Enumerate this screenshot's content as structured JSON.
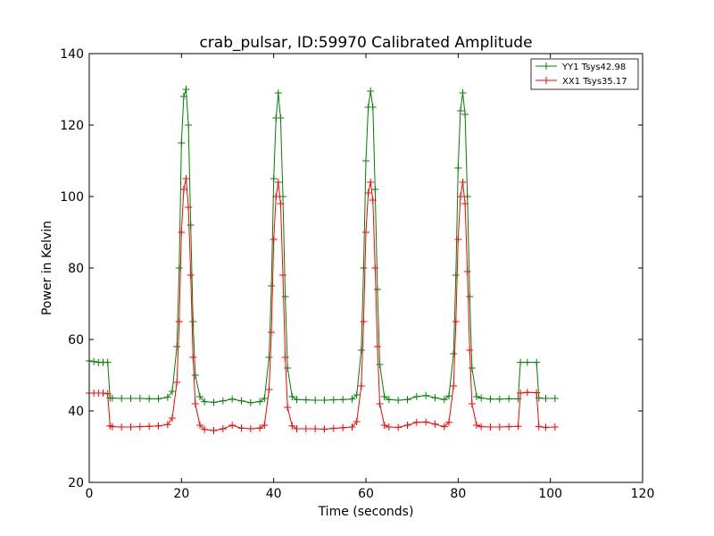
{
  "chart_data": {
    "type": "line",
    "title": "crab_pulsar, ID:59970 Calibrated Amplitude",
    "xlabel": "Time (seconds)",
    "ylabel": "Power in Kelvin",
    "xlim": [
      0,
      120
    ],
    "ylim": [
      20,
      140
    ],
    "xticks": [
      0,
      20,
      40,
      60,
      80,
      100,
      120
    ],
    "yticks": [
      20,
      40,
      60,
      80,
      100,
      120,
      140
    ],
    "grid": false,
    "legend_position": "top-right",
    "marker": "+",
    "series": [
      {
        "name": "YY1 Tsys42.98",
        "color": "#008000",
        "x": [
          0,
          1,
          2,
          3,
          4,
          4.5,
          5,
          7,
          9,
          11,
          13,
          15,
          17,
          18,
          19,
          19.5,
          20,
          20.5,
          21,
          21.5,
          22,
          22.5,
          23,
          24,
          25,
          27,
          29,
          31,
          33,
          35,
          37,
          38,
          39,
          39.5,
          40,
          40.5,
          41,
          41.5,
          42,
          42.5,
          43,
          44,
          45,
          47,
          49,
          51,
          53,
          55,
          57,
          58,
          59,
          59.5,
          60,
          60.5,
          61,
          61.5,
          62,
          62.5,
          63,
          64,
          65,
          67,
          69,
          71,
          73,
          75,
          77,
          78,
          79,
          79.5,
          80,
          80.5,
          81,
          81.5,
          82,
          82.5,
          83,
          84,
          85,
          87,
          89,
          91,
          93,
          93.5,
          95,
          97,
          97.5,
          99,
          101
        ],
        "y": [
          54,
          53.8,
          53.6,
          53.6,
          53.6,
          43.6,
          43.6,
          43.5,
          43.5,
          43.5,
          43.4,
          43.4,
          43.8,
          45.5,
          58,
          80,
          115,
          128,
          130,
          120,
          92,
          65,
          50,
          44,
          42.6,
          42.4,
          42.8,
          43.3,
          42.8,
          42.3,
          42.6,
          43.5,
          55,
          75,
          105,
          122,
          129,
          122,
          100,
          72,
          52,
          44,
          43.2,
          43.1,
          43,
          43,
          43.1,
          43.2,
          43.3,
          44.5,
          57,
          80,
          110,
          125,
          129.5,
          125,
          102,
          74,
          53,
          44,
          43.2,
          43,
          43.2,
          44,
          44.3,
          43.7,
          43.2,
          44.2,
          56,
          78,
          108,
          124,
          129,
          123,
          100,
          72,
          52,
          44,
          43.6,
          43.3,
          43.3,
          43.4,
          43.4,
          53.6,
          53.6,
          53.6,
          43.6,
          43.5,
          43.5
        ]
      },
      {
        "name": "XX1 Tsys35.17",
        "color": "#ff0000",
        "x": [
          0,
          1,
          2,
          3,
          4,
          4.5,
          5,
          7,
          9,
          11,
          13,
          15,
          17,
          18,
          19,
          19.5,
          20,
          20.5,
          21,
          21.5,
          22,
          22.5,
          23,
          24,
          25,
          27,
          29,
          31,
          33,
          35,
          37,
          38,
          39,
          39.5,
          40,
          40.5,
          41,
          41.5,
          42,
          42.5,
          43,
          44,
          45,
          47,
          49,
          51,
          53,
          55,
          57,
          58,
          59,
          59.5,
          60,
          60.5,
          61,
          61.5,
          62,
          62.5,
          63,
          64,
          65,
          67,
          69,
          71,
          73,
          75,
          77,
          78,
          79,
          79.5,
          80,
          80.5,
          81,
          81.5,
          82,
          82.5,
          83,
          84,
          85,
          87,
          89,
          91,
          93,
          93.5,
          95,
          97,
          97.5,
          99,
          101
        ],
        "y": [
          45,
          45,
          45,
          45,
          44.8,
          35.8,
          35.6,
          35.5,
          35.5,
          35.6,
          35.7,
          35.8,
          36.2,
          38,
          48,
          65,
          90,
          102,
          105,
          97,
          78,
          55,
          42,
          36,
          34.8,
          34.5,
          35,
          36,
          35.2,
          35,
          35.2,
          36,
          46,
          62,
          88,
          100,
          104,
          98,
          78,
          55,
          41,
          35.8,
          35,
          35,
          35,
          34.9,
          35.1,
          35.3,
          35.5,
          37,
          47,
          65,
          90,
          101,
          104,
          99,
          80,
          58,
          42,
          36,
          35.5,
          35.4,
          36,
          36.8,
          36.9,
          36.3,
          35.6,
          36.8,
          47,
          65,
          88,
          100,
          104,
          98,
          79,
          57,
          42,
          36,
          35.6,
          35.5,
          35.5,
          35.6,
          35.7,
          45,
          45.2,
          45.1,
          35.6,
          35.4,
          35.5
        ]
      }
    ]
  }
}
